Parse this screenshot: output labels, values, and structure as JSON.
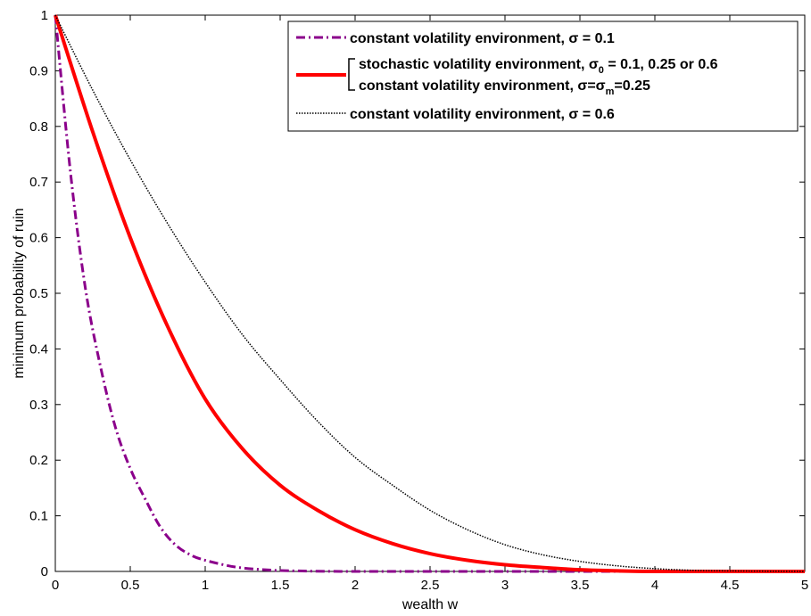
{
  "chart_data": {
    "type": "line",
    "xlabel": "wealth w",
    "ylabel": "minimum probability of ruin",
    "xlim": [
      0,
      5
    ],
    "ylim": [
      0,
      1
    ],
    "x_ticks": [
      "0",
      "0.5",
      "1",
      "1.5",
      "2",
      "2.5",
      "3",
      "3.5",
      "4",
      "4.5",
      "5"
    ],
    "y_ticks": [
      "0",
      "0.1",
      "0.2",
      "0.3",
      "0.4",
      "0.5",
      "0.6",
      "0.7",
      "0.8",
      "0.9",
      "1"
    ],
    "grid": false,
    "legend_position": "top-right",
    "series": [
      {
        "name": "constant volatility environment, σ = 0.1",
        "color": "#8b008b",
        "style": "dash-dot",
        "x": [
          0,
          0.1,
          0.2,
          0.3,
          0.4,
          0.5,
          0.6,
          0.7,
          0.8,
          0.9,
          1.0,
          1.2,
          1.4,
          1.6,
          2.0,
          3.0,
          4.0,
          5.0
        ],
        "y": [
          1.0,
          0.72,
          0.51,
          0.37,
          0.26,
          0.185,
          0.13,
          0.08,
          0.048,
          0.03,
          0.02,
          0.008,
          0.003,
          0.001,
          0.0,
          0.0,
          0.0,
          0.0
        ]
      },
      {
        "name": "stochastic volatility environment, σ0 = 0.1, 0.25 or 0.6 / constant volatility environment, σ=σm=0.25",
        "color": "#ff0000",
        "style": "solid",
        "x": [
          0,
          0.25,
          0.5,
          0.75,
          1.0,
          1.25,
          1.5,
          1.75,
          2.0,
          2.25,
          2.5,
          2.75,
          3.0,
          3.25,
          3.5,
          3.75,
          4.0,
          4.5,
          5.0
        ],
        "y": [
          1.0,
          0.79,
          0.6,
          0.44,
          0.31,
          0.22,
          0.155,
          0.11,
          0.075,
          0.05,
          0.032,
          0.02,
          0.012,
          0.007,
          0.003,
          0.001,
          0.0,
          0.0,
          0.0
        ]
      },
      {
        "name": "constant volatility environment, σ = 0.6",
        "color": "#000000",
        "style": "dotted",
        "x": [
          0,
          0.25,
          0.5,
          0.75,
          1.0,
          1.25,
          1.5,
          1.75,
          2.0,
          2.25,
          2.5,
          2.75,
          3.0,
          3.25,
          3.5,
          3.75,
          4.0,
          4.25,
          4.5,
          5.0
        ],
        "y": [
          1.0,
          0.865,
          0.74,
          0.625,
          0.52,
          0.425,
          0.345,
          0.27,
          0.205,
          0.155,
          0.11,
          0.075,
          0.048,
          0.03,
          0.018,
          0.01,
          0.005,
          0.002,
          0.001,
          0.0
        ]
      }
    ],
    "legend": {
      "entry1": {
        "prefix": "constant volatility environment, ",
        "sym": "σ",
        "suffix": " = 0.1"
      },
      "entry2a": {
        "prefix": "stochastic volatility environment, ",
        "sym": "σ",
        "sub": "0",
        "suffix": " = 0.1, 0.25 or 0.6"
      },
      "entry2b": {
        "prefix": "constant volatility environment, ",
        "sym": "σ",
        "eq": "=",
        "sym2": "σ",
        "sub": "m",
        "suffix": "=0.25"
      },
      "entry3": {
        "prefix": "constant volatility environment, ",
        "sym": "σ",
        "suffix": " = 0.6"
      }
    }
  }
}
